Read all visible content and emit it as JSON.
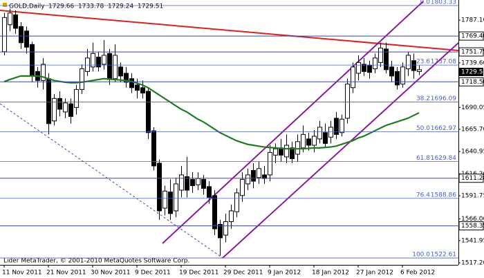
{
  "chart_data": {
    "type": "candlestick",
    "title": "GOLD,Daily",
    "header_values": [
      1729.66,
      1733.78,
      1729.24,
      1729.51
    ],
    "footer": "Lider MetaTrader, © 2001-2010 MetaQuotes Software Corp.",
    "categories": [
      "11 Nov 2011",
      null,
      null,
      null,
      null,
      null,
      null,
      null,
      "21 Nov 2011",
      null,
      null,
      null,
      null,
      null,
      null,
      null,
      "30 Nov 2011",
      null,
      null,
      null,
      null,
      null,
      null,
      null,
      "9 Dec 2011",
      null,
      null,
      null,
      null,
      null,
      null,
      null,
      "19 Dec 2011",
      null,
      null,
      null,
      null,
      null,
      null,
      null,
      "29 Dec 2011",
      null,
      null,
      null,
      null,
      null,
      null,
      null,
      "9 Jan 2012",
      null,
      null,
      null,
      null,
      null,
      null,
      null,
      "18 Jan 2012",
      null,
      null,
      null,
      null,
      null,
      null,
      null,
      "27 Jan 2012",
      null,
      null,
      null,
      null,
      null,
      null,
      null,
      "6 Feb 2012",
      null,
      null,
      null
    ],
    "open": [
      1752,
      1782,
      1793,
      1780,
      1775,
      1760,
      1730,
      1720,
      1722,
      1675,
      1700,
      1685,
      1694,
      1690,
      1710,
      1730,
      1735,
      1746,
      1738,
      1750,
      1722,
      1735,
      1728,
      1722,
      1715,
      1712,
      1708,
      1664,
      1628,
      1578,
      1596,
      1575,
      1598,
      1613,
      1610,
      1604,
      1610,
      1602,
      1592,
      1560,
      1548,
      1563,
      1574,
      1592,
      1605,
      1620,
      1612,
      1615,
      1615,
      1637,
      1645,
      1635,
      1645,
      1638,
      1645,
      1655,
      1648,
      1655,
      1662,
      1657,
      1678,
      1662,
      1678,
      1712,
      1728,
      1738,
      1737,
      1733,
      1740,
      1755,
      1735,
      1730,
      1716,
      1733,
      1742,
      1730
    ],
    "high": [
      1795,
      1800,
      1798,
      1785,
      1780,
      1763,
      1735,
      1745,
      1728,
      1705,
      1708,
      1700,
      1700,
      1715,
      1738,
      1755,
      1762,
      1752,
      1765,
      1755,
      1760,
      1740,
      1735,
      1728,
      1722,
      1720,
      1712,
      1668,
      1632,
      1603,
      1610,
      1612,
      1625,
      1635,
      1618,
      1618,
      1615,
      1608,
      1598,
      1565,
      1572,
      1582,
      1600,
      1618,
      1622,
      1628,
      1630,
      1625,
      1648,
      1650,
      1655,
      1660,
      1652,
      1660,
      1670,
      1662,
      1665,
      1675,
      1672,
      1675,
      1685,
      1682,
      1722,
      1740,
      1748,
      1745,
      1742,
      1750,
      1762,
      1762,
      1742,
      1735,
      1740,
      1752,
      1750,
      1737
    ],
    "low": [
      1748,
      1775,
      1772,
      1755,
      1750,
      1718,
      1712,
      1710,
      1660,
      1670,
      1680,
      1678,
      1672,
      1682,
      1705,
      1725,
      1730,
      1730,
      1732,
      1715,
      1718,
      1718,
      1712,
      1706,
      1700,
      1700,
      1655,
      1620,
      1565,
      1570,
      1565,
      1568,
      1590,
      1590,
      1595,
      1598,
      1593,
      1583,
      1548,
      1525,
      1540,
      1555,
      1568,
      1585,
      1598,
      1600,
      1605,
      1605,
      1608,
      1628,
      1630,
      1628,
      1628,
      1630,
      1640,
      1642,
      1640,
      1650,
      1645,
      1650,
      1655,
      1658,
      1672,
      1706,
      1720,
      1725,
      1722,
      1728,
      1735,
      1728,
      1718,
      1710,
      1712,
      1725,
      1722,
      1726
    ],
    "close": [
      1790,
      1795,
      1778,
      1762,
      1757,
      1725,
      1720,
      1738,
      1672,
      1700,
      1688,
      1695,
      1680,
      1710,
      1733,
      1745,
      1750,
      1735,
      1748,
      1721,
      1748,
      1725,
      1718,
      1712,
      1709,
      1706,
      1662,
      1625,
      1575,
      1597,
      1572,
      1605,
      1615,
      1598,
      1603,
      1611,
      1600,
      1590,
      1555,
      1545,
      1563,
      1575,
      1595,
      1610,
      1615,
      1608,
      1622,
      1611,
      1640,
      1644,
      1637,
      1648,
      1633,
      1652,
      1660,
      1648,
      1658,
      1668,
      1650,
      1668,
      1660,
      1677,
      1716,
      1735,
      1740,
      1730,
      1729,
      1745,
      1756,
      1732,
      1725,
      1715,
      1735,
      1748,
      1731,
      1732
    ],
    "ma": [
      1718.7,
      1721,
      1723,
      1725,
      1725,
      1725,
      1725,
      1724,
      1722,
      1720,
      1719,
      1718,
      1717.5,
      1717.5,
      1718,
      1719,
      1720,
      1721,
      1722,
      1721.5,
      1721,
      1720.5,
      1720,
      1719,
      1717,
      1715,
      1712,
      1708,
      1704,
      1700,
      1696,
      1692,
      1688,
      1685,
      1681,
      1677,
      1674,
      1670,
      1666,
      1662,
      1659,
      1656,
      1653,
      1651,
      1649,
      1648,
      1647,
      1646,
      1645.5,
      1645,
      1644.5,
      1644,
      1644,
      1644,
      1644,
      1644.5,
      1645,
      1645,
      1645.5,
      1646,
      1647,
      1649,
      1651,
      1653,
      1656,
      1658,
      1661,
      1664,
      1667,
      1670,
      1672,
      1674,
      1676,
      1678,
      1681,
      1684
    ],
    "ma_color": "#1e7b1e",
    "ylim": [
      1514.95,
      1809.48
    ],
    "yticks": [
      {
        "value": 1787.1,
        "label": "1787.10"
      },
      {
        "value": 1739.6,
        "label": "1739.60"
      },
      {
        "value": 1690.05,
        "label": "1690.05"
      },
      {
        "value": 1665.7,
        "label": "1665.70"
      },
      {
        "value": 1640.95,
        "label": "1640.95"
      },
      {
        "value": 1616.2,
        "label": "1616.20"
      },
      {
        "value": 1591.75,
        "label": "1591.75"
      },
      {
        "value": 1566.0,
        "label": "1566.00"
      },
      {
        "value": 1541.95,
        "label": "1541.95"
      },
      {
        "value": 1517.2,
        "label": "1517.20"
      }
    ],
    "levels": [
      {
        "value": 1769.4,
        "label": "1769.40"
      },
      {
        "value": 1751.75,
        "label": "1751.75"
      },
      {
        "value": 1718.5,
        "label": "1718.50"
      },
      {
        "value": 1611.28,
        "label": "1611.28"
      },
      {
        "value": 1558.35,
        "label": "1558.35"
      }
    ],
    "last_price": 1729.51,
    "fib_levels": [
      {
        "ratio": "0.0",
        "value": 1803.33
      },
      {
        "ratio": "23.6",
        "value": 1737.08
      },
      {
        "ratio": "38.2",
        "value": 1696.09
      },
      {
        "ratio": "50.0",
        "value": 1662.97
      },
      {
        "ratio": "61.8",
        "value": 1629.84
      },
      {
        "ratio": "76.4",
        "value": 1588.86
      },
      {
        "ratio": "100.0",
        "value": 1522.61
      }
    ],
    "level_color": "#3848a8",
    "fib_color": "#4a5cc8"
  }
}
